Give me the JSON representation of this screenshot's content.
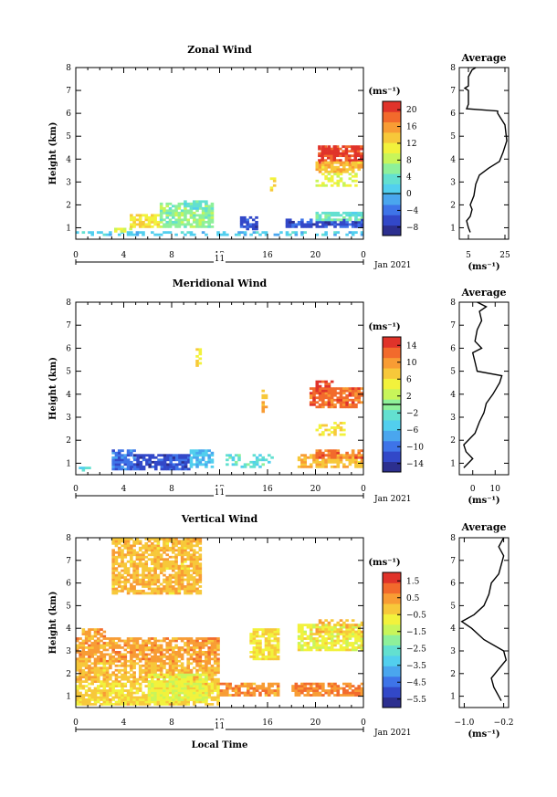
{
  "colors": {
    "zonal": [
      "#2c2f8f",
      "#3248c8",
      "#3e74e8",
      "#4aa6ee",
      "#52cfee",
      "#63e0d0",
      "#8ef09a",
      "#c8f55a",
      "#f2f23c",
      "#f7c83a",
      "#f89c34",
      "#f26a2c",
      "#e0332a"
    ],
    "meridional": [
      "#2c2f8f",
      "#3248c8",
      "#3e74e8",
      "#4aa6ee",
      "#52cfee",
      "#63e0d0",
      "#8ef09a",
      "#c8f55a",
      "#f2f23c",
      "#f7c83a",
      "#f89c34",
      "#f26a2c",
      "#e0332a"
    ],
    "vertical": [
      "#2c2f8f",
      "#3248c8",
      "#3e74e8",
      "#4aa6ee",
      "#52cfee",
      "#63e0d0",
      "#8ef09a",
      "#c8f55a",
      "#f2f23c",
      "#f7c83a",
      "#f89c34",
      "#f26a2c",
      "#e0332a"
    ]
  },
  "chart_data": [
    {
      "id": "zonal",
      "type": "heatmap",
      "title": "Zonal Wind",
      "xlabel": "",
      "ylabel": "Height (km)",
      "xlim": [
        0,
        24
      ],
      "ylim": [
        0.5,
        8
      ],
      "x_ticks": [
        "0",
        "4",
        "8",
        "12",
        "16",
        "20",
        "0"
      ],
      "y_ticks": [
        "1",
        "2",
        "3",
        "4",
        "5",
        "6",
        "7",
        "8"
      ],
      "day_label": "11",
      "date_label": "Jan 2021",
      "colorbar": {
        "unit": "(ms⁻¹)",
        "ticks": [
          "20",
          "16",
          "12",
          "8",
          "4",
          "0",
          "−4",
          "−8"
        ],
        "range": [
          -10,
          22
        ],
        "zero_line": 0
      },
      "cells": [
        [
          0.0,
          24.0,
          0.65,
          0.85,
          1.0,
          1.0,
          "sparse"
        ],
        [
          3.2,
          4.5,
          0.8,
          1.0,
          10.0,
          1.0,
          "patchy"
        ],
        [
          4.5,
          7.0,
          1.0,
          1.6,
          12.0,
          1.0,
          "patchy"
        ],
        [
          7.0,
          11.5,
          1.0,
          2.1,
          6.0,
          1.0,
          "patchy"
        ],
        [
          9.0,
          11.0,
          1.8,
          2.2,
          4.0,
          1.0,
          "patchy"
        ],
        [
          13.7,
          15.0,
          0.9,
          1.5,
          -6.0,
          1.0,
          "patchy"
        ],
        [
          17.5,
          24.0,
          1.0,
          1.4,
          -6.0,
          1.0,
          "patchy"
        ],
        [
          20.0,
          24.0,
          1.3,
          1.7,
          4.0,
          1.0,
          "patchy"
        ],
        [
          16.2,
          16.6,
          2.5,
          3.2,
          12.0,
          1.0,
          "sparse"
        ],
        [
          20.2,
          23.8,
          3.8,
          4.6,
          20.0,
          1.0,
          "patchy"
        ],
        [
          20.5,
          22.0,
          4.2,
          4.6,
          22.0,
          1.0,
          "patchy"
        ],
        [
          20.0,
          24.0,
          3.4,
          3.9,
          14.0,
          1.0,
          "patchy"
        ],
        [
          20.0,
          23.5,
          2.8,
          3.4,
          10.0,
          1.0,
          "sparse"
        ]
      ],
      "profile": {
        "xlim": [
          0,
          27
        ],
        "x_ticks": [
          "5",
          "25"
        ],
        "x_tick_values": [
          5,
          25
        ],
        "xlabel": "(ms⁻¹)",
        "title": "Average",
        "points": [
          [
            6,
            0.8
          ],
          [
            5,
            1.0
          ],
          [
            4,
            1.3
          ],
          [
            6,
            1.5
          ],
          [
            7,
            1.8
          ],
          [
            6,
            2.0
          ],
          [
            8,
            2.4
          ],
          [
            9,
            2.9
          ],
          [
            11,
            3.3
          ],
          [
            16,
            3.6
          ],
          [
            22,
            3.9
          ],
          [
            24,
            4.3
          ],
          [
            26,
            4.8
          ],
          [
            25,
            5.5
          ],
          [
            21,
            6.0
          ],
          [
            21,
            6.1
          ],
          [
            4,
            6.2
          ],
          [
            5,
            6.4
          ],
          [
            5,
            7.0
          ],
          [
            3,
            7.1
          ],
          [
            5,
            7.2
          ],
          [
            5,
            7.6
          ],
          [
            7,
            7.9
          ],
          [
            9,
            8.0
          ]
        ]
      }
    },
    {
      "id": "meridional",
      "type": "heatmap",
      "title": "Meridional Wind",
      "xlabel": "",
      "ylabel": "Height (km)",
      "xlim": [
        0,
        24
      ],
      "ylim": [
        0.5,
        8
      ],
      "x_ticks": [
        "0",
        "4",
        "8",
        "12",
        "16",
        "20",
        "0"
      ],
      "y_ticks": [
        "1",
        "2",
        "3",
        "4",
        "5",
        "6",
        "7",
        "8"
      ],
      "day_label": "11",
      "date_label": "Jan 2021",
      "colorbar": {
        "unit": "(ms⁻¹)",
        "ticks": [
          "14",
          "10",
          "6",
          "2",
          "−2",
          "−6",
          "−10",
          "−14"
        ],
        "range": [
          -16,
          16
        ],
        "zero_line": 0
      },
      "cells": [
        [
          0.0,
          1.4,
          0.65,
          0.85,
          -4.0,
          1.0,
          "sparse"
        ],
        [
          3.0,
          4.8,
          0.7,
          1.6,
          -10.0,
          1.0,
          "patchy"
        ],
        [
          4.8,
          9.5,
          0.7,
          1.4,
          -12.0,
          1.0,
          "patchy"
        ],
        [
          9.5,
          11.5,
          0.8,
          1.6,
          -6.0,
          1.0,
          "patchy"
        ],
        [
          10.0,
          10.5,
          5.2,
          6.0,
          6.0,
          1.0,
          "sparse"
        ],
        [
          12.5,
          16.5,
          0.8,
          1.4,
          -3.0,
          1.0,
          "sparse"
        ],
        [
          15.5,
          16.0,
          3.2,
          4.2,
          8.0,
          1.0,
          "sparse"
        ],
        [
          18.5,
          24.0,
          0.8,
          1.4,
          8.0,
          1.0,
          "patchy"
        ],
        [
          20.0,
          24.0,
          1.2,
          1.6,
          12.0,
          1.0,
          "patchy"
        ],
        [
          19.5,
          23.8,
          3.4,
          4.3,
          12.0,
          1.0,
          "patchy"
        ],
        [
          20.0,
          21.5,
          4.0,
          4.6,
          14.0,
          1.0,
          "sparse"
        ],
        [
          20.0,
          22.5,
          2.2,
          2.8,
          6.0,
          1.0,
          "sparse"
        ]
      ],
      "profile": {
        "xlim": [
          -6,
          16
        ],
        "x_ticks": [
          "0",
          "10"
        ],
        "x_tick_values": [
          0,
          10
        ],
        "xlabel": "(ms⁻¹)",
        "title": "Average",
        "points": [
          [
            -4,
            0.8
          ],
          [
            -2,
            1.0
          ],
          [
            0,
            1.2
          ],
          [
            -3,
            1.5
          ],
          [
            -4,
            1.8
          ],
          [
            -2,
            2.0
          ],
          [
            1,
            2.3
          ],
          [
            3,
            2.8
          ],
          [
            5,
            3.2
          ],
          [
            6,
            3.6
          ],
          [
            9,
            4.0
          ],
          [
            12,
            4.5
          ],
          [
            13,
            4.8
          ],
          [
            2,
            5.0
          ],
          [
            1,
            5.4
          ],
          [
            0,
            5.8
          ],
          [
            4,
            6.0
          ],
          [
            1,
            6.3
          ],
          [
            2,
            6.8
          ],
          [
            4,
            7.2
          ],
          [
            3,
            7.6
          ],
          [
            6,
            7.8
          ],
          [
            2,
            8.0
          ]
        ]
      }
    },
    {
      "id": "vertical",
      "type": "heatmap",
      "title": "Vertical Wind",
      "xlabel": "Local Time",
      "ylabel": "Height (km)",
      "xlim": [
        0,
        24
      ],
      "ylim": [
        0.5,
        8
      ],
      "x_ticks": [
        "0",
        "4",
        "8",
        "12",
        "16",
        "20",
        "0"
      ],
      "y_ticks": [
        "1",
        "2",
        "3",
        "4",
        "5",
        "6",
        "7",
        "8"
      ],
      "day_label": "11",
      "date_label": "Jan 2021",
      "colorbar": {
        "unit": "(ms⁻¹)",
        "ticks": [
          "1.5",
          "0.5",
          "−0.5",
          "−1.5",
          "−2.5",
          "−3.5",
          "−4.5",
          "−5.5"
        ],
        "range": [
          -6,
          2
        ],
        "zero_line": null
      },
      "cells": [
        [
          3.0,
          10.5,
          5.5,
          8.0,
          0.0,
          1.0,
          "patchy"
        ],
        [
          0.5,
          2.5,
          3.6,
          4.0,
          0.4,
          1.0,
          "patchy"
        ],
        [
          0.0,
          12.0,
          2.5,
          3.6,
          0.4,
          1.0,
          "patchy"
        ],
        [
          0.0,
          12.0,
          1.6,
          2.5,
          0.0,
          1.0,
          "patchy"
        ],
        [
          0.0,
          12.0,
          0.6,
          1.6,
          -0.3,
          1.0,
          "patchy"
        ],
        [
          6.0,
          11.0,
          0.8,
          2.0,
          -1.0,
          1.0,
          "patchy"
        ],
        [
          12.0,
          17.0,
          1.0,
          1.6,
          0.5,
          1.0,
          "patchy"
        ],
        [
          14.5,
          17.0,
          2.6,
          4.0,
          -0.5,
          1.0,
          "patchy"
        ],
        [
          18.0,
          24.0,
          1.0,
          1.6,
          0.7,
          1.0,
          "patchy"
        ],
        [
          18.5,
          24.0,
          3.0,
          4.2,
          -0.8,
          1.0,
          "patchy"
        ],
        [
          20.0,
          24.0,
          3.8,
          4.4,
          0.0,
          1.0,
          "sparse"
        ]
      ],
      "profile": {
        "xlim": [
          -1.1,
          -0.1
        ],
        "x_ticks": [
          "−1.0",
          "−0.2"
        ],
        "x_tick_values": [
          -1.0,
          -0.2
        ],
        "xlabel": "(ms⁻¹)",
        "title": "Average",
        "points": [
          [
            -0.25,
            0.8
          ],
          [
            -0.3,
            1.0
          ],
          [
            -0.4,
            1.4
          ],
          [
            -0.45,
            1.8
          ],
          [
            -0.3,
            2.2
          ],
          [
            -0.15,
            2.6
          ],
          [
            -0.2,
            3.0
          ],
          [
            -0.6,
            3.5
          ],
          [
            -0.85,
            4.0
          ],
          [
            -1.05,
            4.3
          ],
          [
            -0.8,
            4.6
          ],
          [
            -0.6,
            5.0
          ],
          [
            -0.5,
            5.5
          ],
          [
            -0.45,
            6.0
          ],
          [
            -0.3,
            6.4
          ],
          [
            -0.25,
            6.8
          ],
          [
            -0.2,
            7.2
          ],
          [
            -0.3,
            7.6
          ],
          [
            -0.2,
            8.0
          ]
        ]
      }
    }
  ]
}
